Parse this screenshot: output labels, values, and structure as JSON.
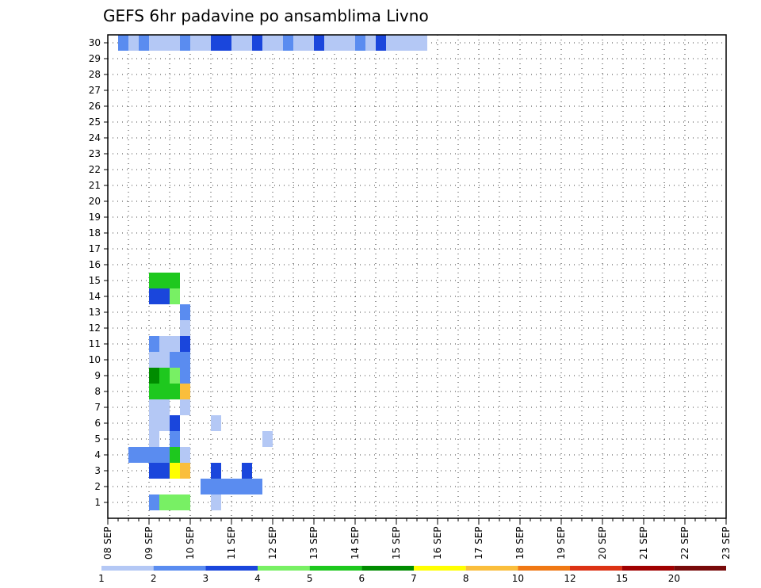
{
  "chart_data": {
    "type": "heatmap",
    "title": "GEFS 6hr padavine po ansamblima Livno",
    "xlabel": "",
    "ylabel": "",
    "x_ticks": [
      "08 SEP",
      "09 SEP",
      "10 SEP",
      "11 SEP",
      "12 SEP",
      "13 SEP",
      "14 SEP",
      "15 SEP",
      "16 SEP",
      "17 SEP",
      "18 SEP",
      "19 SEP",
      "20 SEP",
      "21 SEP",
      "22 SEP",
      "23 SEP"
    ],
    "y_ticks": [
      "1",
      "2",
      "3",
      "4",
      "5",
      "6",
      "7",
      "8",
      "9",
      "10",
      "11",
      "12",
      "13",
      "14",
      "15",
      "16",
      "17",
      "18",
      "19",
      "20",
      "21",
      "22",
      "23",
      "24",
      "25",
      "26",
      "27",
      "28",
      "29",
      "30"
    ],
    "x_unit": "6-hour steps from 08 SEP 00Z",
    "xlim": [
      0,
      60
    ],
    "ylim": [
      0,
      30
    ],
    "grid": true,
    "legend": {
      "placement": "bottom",
      "levels": [
        "1",
        "2",
        "3",
        "4",
        "5",
        "6",
        "7",
        "8",
        "10",
        "12",
        "15",
        "20"
      ],
      "colors": [
        "#b4c8f5",
        "#5a8cf0",
        "#1a46dc",
        "#78f064",
        "#1ec81e",
        "#008c00",
        "#ffff00",
        "#fabe3c",
        "#f07814",
        "#dc3214",
        "#a00000",
        "#780a0a"
      ]
    },
    "cells": [
      [
        4,
        1,
        2
      ],
      [
        5,
        1,
        4
      ],
      [
        6,
        1,
        4
      ],
      [
        7,
        1,
        4
      ],
      [
        10,
        1,
        1
      ],
      [
        9,
        2,
        2
      ],
      [
        10,
        2,
        2
      ],
      [
        11,
        2,
        2
      ],
      [
        12,
        2,
        2
      ],
      [
        13,
        2,
        2
      ],
      [
        14,
        2,
        2
      ],
      [
        4,
        3,
        3
      ],
      [
        5,
        3,
        3
      ],
      [
        6,
        3,
        7
      ],
      [
        7,
        3,
        8
      ],
      [
        10,
        3,
        3
      ],
      [
        13,
        3,
        3
      ],
      [
        2,
        4,
        2
      ],
      [
        3,
        4,
        2
      ],
      [
        4,
        4,
        2
      ],
      [
        5,
        4,
        2
      ],
      [
        6,
        4,
        5
      ],
      [
        7,
        4,
        1
      ],
      [
        4,
        5,
        1
      ],
      [
        6,
        5,
        2
      ],
      [
        4,
        6,
        1
      ],
      [
        5,
        6,
        1
      ],
      [
        6,
        6,
        3
      ],
      [
        10,
        6,
        1
      ],
      [
        15,
        5,
        1
      ],
      [
        4,
        7,
        1
      ],
      [
        5,
        7,
        1
      ],
      [
        7,
        7,
        1
      ],
      [
        4,
        8,
        5
      ],
      [
        5,
        8,
        5
      ],
      [
        6,
        8,
        5
      ],
      [
        7,
        8,
        8
      ],
      [
        4,
        9,
        6
      ],
      [
        5,
        9,
        5
      ],
      [
        6,
        9,
        4
      ],
      [
        7,
        9,
        2
      ],
      [
        4,
        10,
        1
      ],
      [
        5,
        10,
        1
      ],
      [
        6,
        10,
        2
      ],
      [
        7,
        10,
        2
      ],
      [
        4,
        11,
        2
      ],
      [
        5,
        11,
        1
      ],
      [
        6,
        11,
        1
      ],
      [
        7,
        11,
        3
      ],
      [
        7,
        12,
        1
      ],
      [
        7,
        13,
        2
      ],
      [
        4,
        14,
        3
      ],
      [
        5,
        14,
        3
      ],
      [
        6,
        14,
        4
      ],
      [
        4,
        15,
        5
      ],
      [
        5,
        15,
        5
      ],
      [
        6,
        15,
        5
      ],
      [
        1,
        30,
        2
      ],
      [
        2,
        30,
        1
      ],
      [
        3,
        30,
        2
      ],
      [
        4,
        30,
        1
      ],
      [
        5,
        30,
        1
      ],
      [
        6,
        30,
        1
      ],
      [
        7,
        30,
        2
      ],
      [
        8,
        30,
        1
      ],
      [
        9,
        30,
        1
      ],
      [
        10,
        30,
        3
      ],
      [
        11,
        30,
        3
      ],
      [
        12,
        30,
        1
      ],
      [
        13,
        30,
        1
      ],
      [
        14,
        30,
        3
      ],
      [
        15,
        30,
        1
      ],
      [
        16,
        30,
        1
      ],
      [
        17,
        30,
        2
      ],
      [
        18,
        30,
        1
      ],
      [
        19,
        30,
        1
      ],
      [
        20,
        30,
        3
      ],
      [
        21,
        30,
        1
      ],
      [
        22,
        30,
        1
      ],
      [
        23,
        30,
        1
      ],
      [
        24,
        30,
        2
      ],
      [
        25,
        30,
        1
      ],
      [
        26,
        30,
        3
      ],
      [
        27,
        30,
        1
      ],
      [
        28,
        30,
        1
      ],
      [
        29,
        30,
        1
      ],
      [
        30,
        30,
        1
      ]
    ]
  }
}
